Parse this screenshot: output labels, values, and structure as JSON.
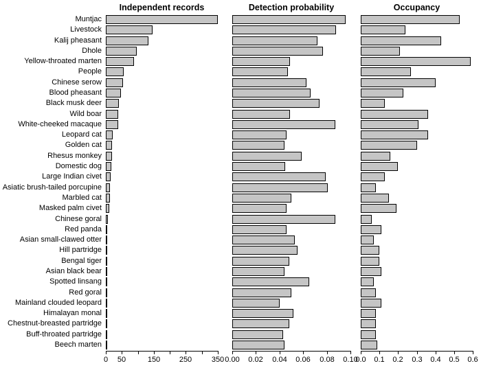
{
  "chart_data": {
    "type": "bar",
    "orientation": "horizontal",
    "grid": false,
    "legend": false,
    "background": "#ffffff",
    "bar_fill": "#c5c5c5",
    "bar_border": "#000000",
    "text_color": "#000000",
    "categories": [
      "Muntjac",
      "Livestock",
      "Kalij pheasant",
      "Dhole",
      "Yellow-throated marten",
      "People",
      "Chinese serow",
      "Blood pheasant",
      "Black musk deer",
      "Wild boar",
      "White-cheeked macaque",
      "Leopard cat",
      "Golden cat",
      "Rhesus monkey",
      "Domestic dog",
      "Large Indian civet",
      "Asiatic brush-tailed porcupine",
      "Marbled cat",
      "Masked palm civet",
      "Chinese goral",
      "Red panda",
      "Asian small-clawed otter",
      "Hill partridge",
      "Bengal tiger",
      "Asian black bear",
      "Spotted linsang",
      "Red goral",
      "Mainland clouded leopard",
      "Himalayan monal",
      "Chestnut-breasted partridge",
      "Buff-throated partridge",
      "Beech marten"
    ],
    "panels": [
      {
        "title": "Independent records",
        "xlim": [
          0,
          350
        ],
        "ticks": [
          0,
          50,
          100,
          150,
          200,
          250,
          300,
          350
        ],
        "tick_labels": [
          "0",
          "50",
          "",
          "150",
          "",
          "250",
          "",
          "350"
        ],
        "values": [
          350,
          145,
          133,
          97,
          88,
          55,
          53,
          48,
          40,
          39,
          39,
          22,
          19,
          19,
          17,
          14,
          13,
          12,
          11,
          7,
          4,
          3,
          4,
          3,
          3,
          2,
          2,
          2,
          2,
          2,
          2,
          1
        ]
      },
      {
        "title": "Detection probability",
        "xlim": [
          0,
          0.1
        ],
        "ticks": [
          0,
          0.02,
          0.04,
          0.06,
          0.08,
          0.1
        ],
        "tick_labels": [
          "0.00",
          "0.02",
          "0.04",
          "0.06",
          "0.08",
          "0.10"
        ],
        "values": [
          0.096,
          0.088,
          0.072,
          0.077,
          0.049,
          0.047,
          0.063,
          0.066,
          0.074,
          0.049,
          0.087,
          0.046,
          0.044,
          0.059,
          0.045,
          0.079,
          0.081,
          0.05,
          0.046,
          0.087,
          0.046,
          0.053,
          0.055,
          0.048,
          0.044,
          0.065,
          0.05,
          0.04,
          0.052,
          0.048,
          0.043,
          0.044
        ]
      },
      {
        "title": "Occupancy",
        "xlim": [
          0,
          0.6
        ],
        "ticks": [
          0,
          0.1,
          0.2,
          0.3,
          0.4,
          0.5,
          0.6
        ],
        "tick_labels": [
          "0.0",
          "0.1",
          "0.2",
          "0.3",
          "0.4",
          "0.5",
          "0.6"
        ],
        "values": [
          0.53,
          0.24,
          0.43,
          0.21,
          0.59,
          0.27,
          0.4,
          0.23,
          0.13,
          0.36,
          0.31,
          0.36,
          0.3,
          0.16,
          0.2,
          0.13,
          0.08,
          0.15,
          0.19,
          0.06,
          0.11,
          0.07,
          0.1,
          0.1,
          0.11,
          0.07,
          0.08,
          0.11,
          0.08,
          0.08,
          0.08,
          0.09
        ]
      }
    ]
  }
}
